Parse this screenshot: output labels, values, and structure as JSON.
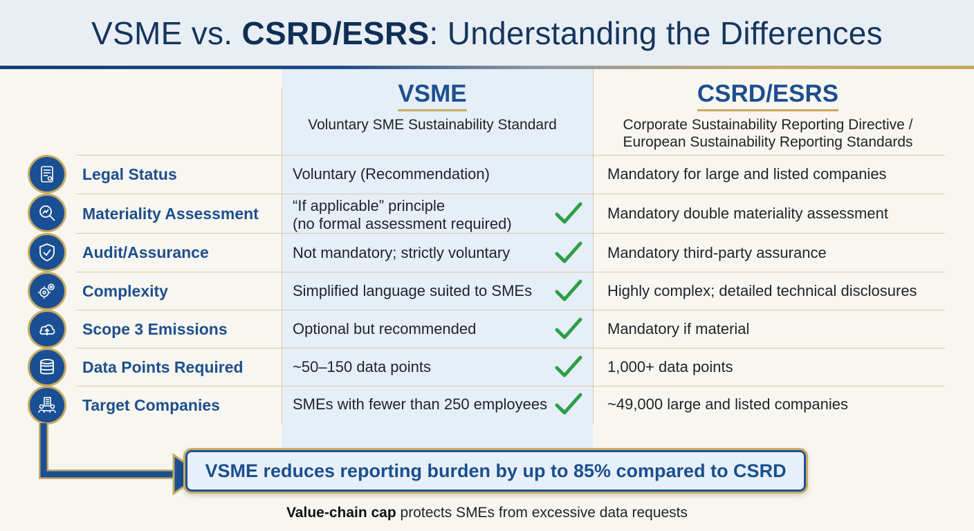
{
  "header": {
    "title_part1": "VSME vs. ",
    "title_bold": "CSRD/ESRS",
    "title_part2": ": Understanding the Differences"
  },
  "columns": {
    "vsme": {
      "title": "VSME",
      "subtitle": "Voluntary SME Sustainability Standard"
    },
    "csrd": {
      "title": "CSRD/ESRS",
      "subtitle_line1": "Corporate Sustainability Reporting Directive /",
      "subtitle_line2": "European Sustainability Reporting Standards"
    }
  },
  "rows": [
    {
      "label": "Legal Status",
      "icon": "document-scroll-icon",
      "vsme_line1": "Voluntary (Recommendation)",
      "vsme_line2": "",
      "csrd": "Mandatory for large and listed companies",
      "check": false
    },
    {
      "label": "Materiality Assessment",
      "icon": "magnifier-chart-icon",
      "vsme_line1": "“If applicable” principle",
      "vsme_line2": "(no formal assessment required)",
      "csrd": "Mandatory double materiality assessment",
      "check": true
    },
    {
      "label": "Audit/Assurance",
      "icon": "shield-check-icon",
      "vsme_line1": "Not mandatory; strictly voluntary",
      "vsme_line2": "",
      "csrd": "Mandatory third-party assurance",
      "check": true
    },
    {
      "label": "Complexity",
      "icon": "gears-icon",
      "vsme_line1": "Simplified language suited to SMEs",
      "vsme_line2": "",
      "csrd": "Highly complex; detailed technical disclosures",
      "check": true
    },
    {
      "label": "Scope 3 Emissions",
      "icon": "cloud-upload-icon",
      "vsme_line1": "Optional but recommended",
      "vsme_line2": "",
      "csrd": "Mandatory if material",
      "check": true
    },
    {
      "label": "Data Points Required",
      "icon": "database-icon",
      "vsme_line1": "~50–150 data points",
      "vsme_line2": "",
      "csrd": "1,000+ data points",
      "check": true
    },
    {
      "label": "Target Companies",
      "icon": "building-people-icon",
      "vsme_line1": "SMEs with fewer than 250 employees",
      "vsme_line2": "",
      "csrd": "~49,000 large and listed companies",
      "check": true
    }
  ],
  "callout": {
    "text": "VSME reduces reporting burden by up to 85% compared to CSRD"
  },
  "footnote": {
    "bold": "Value-chain cap",
    "rest": " protects SMEs from excessive data requests"
  },
  "colors": {
    "primary": "#1b4f93",
    "gold": "#c8ab62",
    "check": "#2e9e48",
    "header_bg": "#e9eef5",
    "vsme_band": "#e6eef7"
  }
}
